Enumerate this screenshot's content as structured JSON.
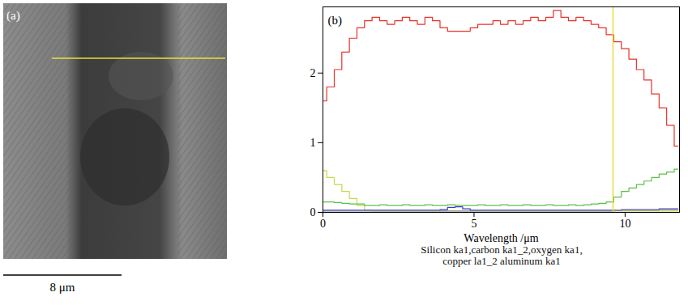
{
  "panel_a": {
    "label": "(a)",
    "scale_bar": "8 μm"
  },
  "chart_data": {
    "type": "line",
    "panel_label": "(b)",
    "x_label": "Wavelength /μm",
    "caption": [
      "Silicon ka1,carbon ka1_2,oxygen ka1,",
      "copper la1_2 aluminum ka1"
    ],
    "x": [
      0,
      0.25,
      0.5,
      0.75,
      1,
      1.25,
      1.5,
      1.75,
      2,
      2.25,
      2.5,
      2.75,
      3,
      3.25,
      3.5,
      3.75,
      4,
      4.25,
      4.5,
      4.75,
      5,
      5.25,
      5.5,
      5.75,
      6,
      6.25,
      6.5,
      6.75,
      7,
      7.25,
      7.5,
      7.75,
      8,
      8.25,
      8.5,
      8.75,
      9,
      9.25,
      9.5,
      9.75,
      10,
      10.25,
      10.5,
      10.75,
      11,
      11.25,
      11.5,
      11.75
    ],
    "series": [
      {
        "color": "#e8322a",
        "values": [
          1.6,
          1.8,
          2.05,
          2.3,
          2.5,
          2.65,
          2.75,
          2.8,
          2.75,
          2.7,
          2.75,
          2.8,
          2.75,
          2.7,
          2.8,
          2.75,
          2.65,
          2.6,
          2.6,
          2.6,
          2.65,
          2.7,
          2.7,
          2.75,
          2.7,
          2.75,
          2.7,
          2.75,
          2.8,
          2.75,
          2.8,
          2.9,
          2.8,
          2.75,
          2.8,
          2.75,
          2.7,
          2.65,
          2.55,
          2.45,
          2.35,
          2.2,
          2.05,
          1.9,
          1.7,
          1.5,
          1.25,
          0.95
        ]
      },
      {
        "color": "#c8d84a",
        "values": [
          0.6,
          0.5,
          0.4,
          0.3,
          0.2,
          0.1,
          0.03,
          0.02,
          0.02,
          0.02,
          0.02,
          0.02,
          0.02,
          0.02,
          0.02,
          0.02,
          0.02,
          0.02,
          0.02,
          0.02,
          0.02,
          0.02,
          0.02,
          0.02,
          0.02,
          0.02,
          0.02,
          0.02,
          0.02,
          0.02,
          0.02,
          0.02,
          0.02,
          0.02,
          0.02,
          0.02,
          0.02,
          0.02,
          0.02,
          0.02,
          0.02,
          0.02,
          0.02,
          0.02,
          0.02,
          0.02,
          0.02,
          0.02
        ]
      },
      {
        "color": "#5cc04a",
        "values": [
          0.15,
          0.15,
          0.14,
          0.13,
          0.12,
          0.12,
          0.1,
          0.1,
          0.11,
          0.1,
          0.1,
          0.11,
          0.1,
          0.1,
          0.11,
          0.1,
          0.1,
          0.11,
          0.1,
          0.1,
          0.1,
          0.11,
          0.1,
          0.1,
          0.11,
          0.1,
          0.1,
          0.11,
          0.1,
          0.1,
          0.11,
          0.1,
          0.1,
          0.11,
          0.1,
          0.11,
          0.12,
          0.13,
          0.15,
          0.22,
          0.3,
          0.35,
          0.4,
          0.45,
          0.5,
          0.55,
          0.58,
          0.62
        ]
      },
      {
        "color": "#3a3ad0",
        "values": [
          0.03,
          0.03,
          0.03,
          0.03,
          0.03,
          0.03,
          0.03,
          0.03,
          0.03,
          0.03,
          0.03,
          0.03,
          0.03,
          0.03,
          0.03,
          0.03,
          0.04,
          0.07,
          0.08,
          0.05,
          0.03,
          0.03,
          0.03,
          0.03,
          0.03,
          0.03,
          0.03,
          0.03,
          0.03,
          0.03,
          0.03,
          0.03,
          0.03,
          0.03,
          0.03,
          0.03,
          0.03,
          0.03,
          0.03,
          0.03,
          0.04,
          0.04,
          0.04,
          0.04,
          0.04,
          0.05,
          0.05,
          0.05
        ]
      },
      {
        "color": "#8a8a9a",
        "values": [
          0.02,
          0.02,
          0.02,
          0.02,
          0.02,
          0.02,
          0.02,
          0.02,
          0.02,
          0.02,
          0.02,
          0.02,
          0.02,
          0.02,
          0.02,
          0.02,
          0.02,
          0.02,
          0.02,
          0.02,
          0.02,
          0.02,
          0.02,
          0.02,
          0.02,
          0.02,
          0.02,
          0.02,
          0.02,
          0.02,
          0.02,
          0.02,
          0.02,
          0.02,
          0.02,
          0.02,
          0.02,
          0.02,
          0.02,
          0.03,
          0.03,
          0.03,
          0.03,
          0.03,
          0.03,
          0.04,
          0.04,
          0.04
        ]
      }
    ],
    "vline": {
      "x": 9.6,
      "color": "#e6dc3c"
    },
    "xlim": [
      0,
      11.8
    ],
    "ylim": [
      0,
      2.95
    ],
    "xticks": [
      0,
      5,
      10
    ],
    "yticks": [
      0,
      1,
      2
    ],
    "grid": false,
    "line_style": "step"
  }
}
